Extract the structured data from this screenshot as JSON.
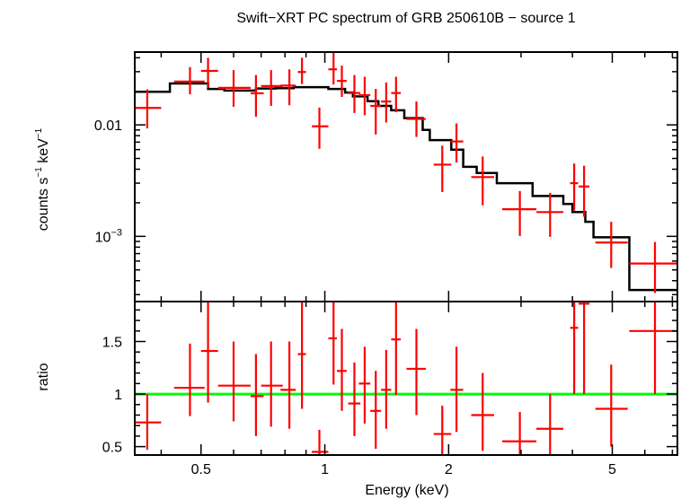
{
  "chart_data": {
    "title": "Swift−XRT PC spectrum of GRB 250610B − source 1",
    "xlabel": "Energy (keV)",
    "x_scale": "log",
    "xlim": [
      0.345,
      7.2
    ],
    "x_ticks": [
      {
        "value": 0.5,
        "label": "0.5"
      },
      {
        "value": 1,
        "label": "1"
      },
      {
        "value": 2,
        "label": "2"
      },
      {
        "value": 5,
        "label": "5"
      }
    ],
    "colors": {
      "data": "#ff0000",
      "model": "#000000",
      "unity": "#00ff00",
      "frame": "#000000"
    },
    "panels": [
      {
        "type": "scatter",
        "name": "spectrum",
        "ylabel_main": "counts s",
        "ylabel_sup1": "−1",
        "ylabel_mid": " keV",
        "ylabel_sup2": "−1",
        "y_scale": "log",
        "ylim": [
          0.00026,
          0.045
        ],
        "y_ticks": [
          {
            "value": 0.01,
            "label": "0.01"
          },
          {
            "value": 0.001,
            "label": "10",
            "sup": "−3"
          }
        ],
        "points": [
          {
            "x": 0.37,
            "xlo": 0.345,
            "xhi": 0.4,
            "y": 0.0142,
            "ylo": 0.0093,
            "yhi": 0.0208
          },
          {
            "x": 0.47,
            "xlo": 0.43,
            "xhi": 0.51,
            "y": 0.0245,
            "ylo": 0.0188,
            "yhi": 0.033
          },
          {
            "x": 0.52,
            "xlo": 0.5,
            "xhi": 0.55,
            "y": 0.0305,
            "ylo": 0.0215,
            "yhi": 0.04
          },
          {
            "x": 0.6,
            "xlo": 0.55,
            "xhi": 0.66,
            "y": 0.0215,
            "ylo": 0.0145,
            "yhi": 0.031
          },
          {
            "x": 0.68,
            "xlo": 0.66,
            "xhi": 0.71,
            "y": 0.0192,
            "ylo": 0.0118,
            "yhi": 0.028
          },
          {
            "x": 0.74,
            "xlo": 0.7,
            "xhi": 0.79,
            "y": 0.0223,
            "ylo": 0.0148,
            "yhi": 0.031
          },
          {
            "x": 0.82,
            "xlo": 0.78,
            "xhi": 0.85,
            "y": 0.0225,
            "ylo": 0.015,
            "yhi": 0.0315
          },
          {
            "x": 0.88,
            "xlo": 0.86,
            "xhi": 0.9,
            "y": 0.0298,
            "ylo": 0.0232,
            "yhi": 0.04
          },
          {
            "x": 0.97,
            "xlo": 0.93,
            "xhi": 1.02,
            "y": 0.0097,
            "ylo": 0.0061,
            "yhi": 0.0143
          },
          {
            "x": 1.05,
            "xlo": 1.02,
            "xhi": 1.07,
            "y": 0.0315,
            "ylo": 0.023,
            "yhi": 0.045
          },
          {
            "x": 1.1,
            "xlo": 1.07,
            "xhi": 1.13,
            "y": 0.0248,
            "ylo": 0.0178,
            "yhi": 0.034
          },
          {
            "x": 1.18,
            "xlo": 1.14,
            "xhi": 1.22,
            "y": 0.0193,
            "ylo": 0.0128,
            "yhi": 0.028
          },
          {
            "x": 1.25,
            "xlo": 1.21,
            "xhi": 1.29,
            "y": 0.0185,
            "ylo": 0.0122,
            "yhi": 0.027
          },
          {
            "x": 1.33,
            "xlo": 1.29,
            "xhi": 1.37,
            "y": 0.0148,
            "ylo": 0.0082,
            "yhi": 0.021
          },
          {
            "x": 1.41,
            "xlo": 1.37,
            "xhi": 1.45,
            "y": 0.0162,
            "ylo": 0.0105,
            "yhi": 0.024
          },
          {
            "x": 1.49,
            "xlo": 1.45,
            "xhi": 1.53,
            "y": 0.0193,
            "ylo": 0.013,
            "yhi": 0.027
          },
          {
            "x": 1.67,
            "xlo": 1.58,
            "xhi": 1.76,
            "y": 0.0113,
            "ylo": 0.0078,
            "yhi": 0.0162
          },
          {
            "x": 1.93,
            "xlo": 1.84,
            "xhi": 2.03,
            "y": 0.0044,
            "ylo": 0.0025,
            "yhi": 0.0065
          },
          {
            "x": 2.09,
            "xlo": 2.02,
            "xhi": 2.17,
            "y": 0.0071,
            "ylo": 0.0046,
            "yhi": 0.0103
          },
          {
            "x": 2.42,
            "xlo": 2.27,
            "xhi": 2.58,
            "y": 0.0034,
            "ylo": 0.0019,
            "yhi": 0.0052
          },
          {
            "x": 2.98,
            "xlo": 2.7,
            "xhi": 3.27,
            "y": 0.00175,
            "ylo": 0.00101,
            "yhi": 0.00255
          },
          {
            "x": 3.53,
            "xlo": 3.27,
            "xhi": 3.8,
            "y": 0.00165,
            "ylo": 0.00099,
            "yhi": 0.00245
          },
          {
            "x": 4.04,
            "xlo": 3.95,
            "xhi": 4.13,
            "y": 0.003,
            "ylo": 0.0017,
            "yhi": 0.0045
          },
          {
            "x": 4.27,
            "xlo": 4.14,
            "xhi": 4.4,
            "y": 0.0028,
            "ylo": 0.0015,
            "yhi": 0.0043
          },
          {
            "x": 4.97,
            "xlo": 4.55,
            "xhi": 5.45,
            "y": 0.00088,
            "ylo": 0.00052,
            "yhi": 0.00135
          },
          {
            "x": 6.35,
            "xlo": 5.5,
            "xhi": 7.2,
            "y": 0.00057,
            "ylo": 0.00031,
            "yhi": 0.00089
          }
        ],
        "model_steps": [
          {
            "x0": 0.345,
            "x1": 0.42,
            "y": 0.0198
          },
          {
            "x0": 0.42,
            "x1": 0.52,
            "y": 0.0235
          },
          {
            "x0": 0.52,
            "x1": 0.57,
            "y": 0.021
          },
          {
            "x0": 0.57,
            "x1": 0.68,
            "y": 0.0203
          },
          {
            "x0": 0.68,
            "x1": 0.76,
            "y": 0.0212
          },
          {
            "x0": 0.76,
            "x1": 0.84,
            "y": 0.0213
          },
          {
            "x0": 0.84,
            "x1": 1.02,
            "y": 0.0218
          },
          {
            "x0": 1.02,
            "x1": 1.12,
            "y": 0.021
          },
          {
            "x0": 1.12,
            "x1": 1.17,
            "y": 0.0195
          },
          {
            "x0": 1.17,
            "x1": 1.27,
            "y": 0.018
          },
          {
            "x0": 1.27,
            "x1": 1.35,
            "y": 0.0163
          },
          {
            "x0": 1.35,
            "x1": 1.45,
            "y": 0.0148
          },
          {
            "x0": 1.45,
            "x1": 1.56,
            "y": 0.0135
          },
          {
            "x0": 1.56,
            "x1": 1.73,
            "y": 0.0115
          },
          {
            "x0": 1.73,
            "x1": 1.8,
            "y": 0.009
          },
          {
            "x0": 1.8,
            "x1": 2.03,
            "y": 0.0073
          },
          {
            "x0": 2.03,
            "x1": 2.17,
            "y": 0.006
          },
          {
            "x0": 2.17,
            "x1": 2.34,
            "y": 0.0042
          },
          {
            "x0": 2.34,
            "x1": 2.62,
            "y": 0.0037
          },
          {
            "x0": 2.62,
            "x1": 3.2,
            "y": 0.003
          },
          {
            "x0": 3.2,
            "x1": 3.8,
            "y": 0.0023
          },
          {
            "x0": 3.8,
            "x1": 4.0,
            "y": 0.00195
          },
          {
            "x0": 4.0,
            "x1": 4.3,
            "y": 0.00165
          },
          {
            "x0": 4.3,
            "x1": 4.5,
            "y": 0.00135
          },
          {
            "x0": 4.5,
            "x1": 5.5,
            "y": 0.00098
          },
          {
            "x0": 5.5,
            "x1": 7.2,
            "y": 0.00033
          }
        ]
      },
      {
        "type": "scatter",
        "name": "ratio",
        "ylabel": "ratio",
        "y_scale": "linear",
        "ylim": [
          0.42,
          1.88
        ],
        "y_ticks": [
          {
            "value": 0.5,
            "label": "0.5"
          },
          {
            "value": 1,
            "label": "1"
          },
          {
            "value": 1.5,
            "label": "1.5"
          }
        ],
        "unity_line": 1,
        "points": [
          {
            "x": 0.37,
            "xlo": 0.345,
            "xhi": 0.4,
            "y": 0.73,
            "ylo": 0.47,
            "yhi": 1.0
          },
          {
            "x": 0.47,
            "xlo": 0.43,
            "xhi": 0.51,
            "y": 1.06,
            "ylo": 0.79,
            "yhi": 1.48
          },
          {
            "x": 0.52,
            "xlo": 0.5,
            "xhi": 0.55,
            "y": 1.41,
            "ylo": 0.92,
            "yhi": 1.88
          },
          {
            "x": 0.6,
            "xlo": 0.55,
            "xhi": 0.66,
            "y": 1.08,
            "ylo": 0.74,
            "yhi": 1.5
          },
          {
            "x": 0.68,
            "xlo": 0.66,
            "xhi": 0.71,
            "y": 0.98,
            "ylo": 0.6,
            "yhi": 1.38
          },
          {
            "x": 0.74,
            "xlo": 0.7,
            "xhi": 0.79,
            "y": 1.08,
            "ylo": 0.69,
            "yhi": 1.5
          },
          {
            "x": 0.82,
            "xlo": 0.78,
            "xhi": 0.85,
            "y": 1.04,
            "ylo": 0.67,
            "yhi": 1.5
          },
          {
            "x": 0.88,
            "xlo": 0.86,
            "xhi": 0.9,
            "y": 1.38,
            "ylo": 0.86,
            "yhi": 1.88
          },
          {
            "x": 0.97,
            "xlo": 0.93,
            "xhi": 1.02,
            "y": 0.45,
            "ylo": 0.42,
            "yhi": 0.66
          },
          {
            "x": 1.05,
            "xlo": 1.02,
            "xhi": 1.07,
            "y": 1.53,
            "ylo": 1.09,
            "yhi": 1.88
          },
          {
            "x": 1.1,
            "xlo": 1.07,
            "xhi": 1.13,
            "y": 1.22,
            "ylo": 0.84,
            "yhi": 1.62
          },
          {
            "x": 1.18,
            "xlo": 1.14,
            "xhi": 1.22,
            "y": 0.91,
            "ylo": 0.6,
            "yhi": 1.3
          },
          {
            "x": 1.25,
            "xlo": 1.21,
            "xhi": 1.29,
            "y": 1.1,
            "ylo": 0.72,
            "yhi": 1.45
          },
          {
            "x": 1.33,
            "xlo": 1.29,
            "xhi": 1.37,
            "y": 0.84,
            "ylo": 0.48,
            "yhi": 1.22
          },
          {
            "x": 1.41,
            "xlo": 1.37,
            "xhi": 1.45,
            "y": 1.04,
            "ylo": 0.67,
            "yhi": 1.42
          },
          {
            "x": 1.49,
            "xlo": 1.45,
            "xhi": 1.53,
            "y": 1.52,
            "ylo": 0.99,
            "yhi": 1.88
          },
          {
            "x": 1.67,
            "xlo": 1.58,
            "xhi": 1.76,
            "y": 1.24,
            "ylo": 0.8,
            "yhi": 1.62
          },
          {
            "x": 1.93,
            "xlo": 1.84,
            "xhi": 2.03,
            "y": 0.62,
            "ylo": 0.42,
            "yhi": 0.89
          },
          {
            "x": 2.09,
            "xlo": 2.02,
            "xhi": 2.17,
            "y": 1.04,
            "ylo": 0.64,
            "yhi": 1.45
          },
          {
            "x": 2.42,
            "xlo": 2.27,
            "xhi": 2.58,
            "y": 0.8,
            "ylo": 0.46,
            "yhi": 1.2
          },
          {
            "x": 2.98,
            "xlo": 2.7,
            "xhi": 3.27,
            "y": 0.55,
            "ylo": 0.42,
            "yhi": 0.83
          },
          {
            "x": 3.53,
            "xlo": 3.27,
            "xhi": 3.8,
            "y": 0.67,
            "ylo": 0.42,
            "yhi": 1.0
          },
          {
            "x": 4.04,
            "xlo": 3.95,
            "xhi": 4.13,
            "y": 1.63,
            "ylo": 1.0,
            "yhi": 1.88
          },
          {
            "x": 4.27,
            "xlo": 4.14,
            "xhi": 4.4,
            "y": 1.86,
            "ylo": 1.0,
            "yhi": 1.88
          },
          {
            "x": 4.97,
            "xlo": 4.55,
            "xhi": 5.45,
            "y": 0.86,
            "ylo": 0.5,
            "yhi": 1.28
          },
          {
            "x": 6.35,
            "xlo": 5.5,
            "xhi": 7.2,
            "y": 1.6,
            "ylo": 1.0,
            "yhi": 1.88
          }
        ]
      }
    ]
  }
}
